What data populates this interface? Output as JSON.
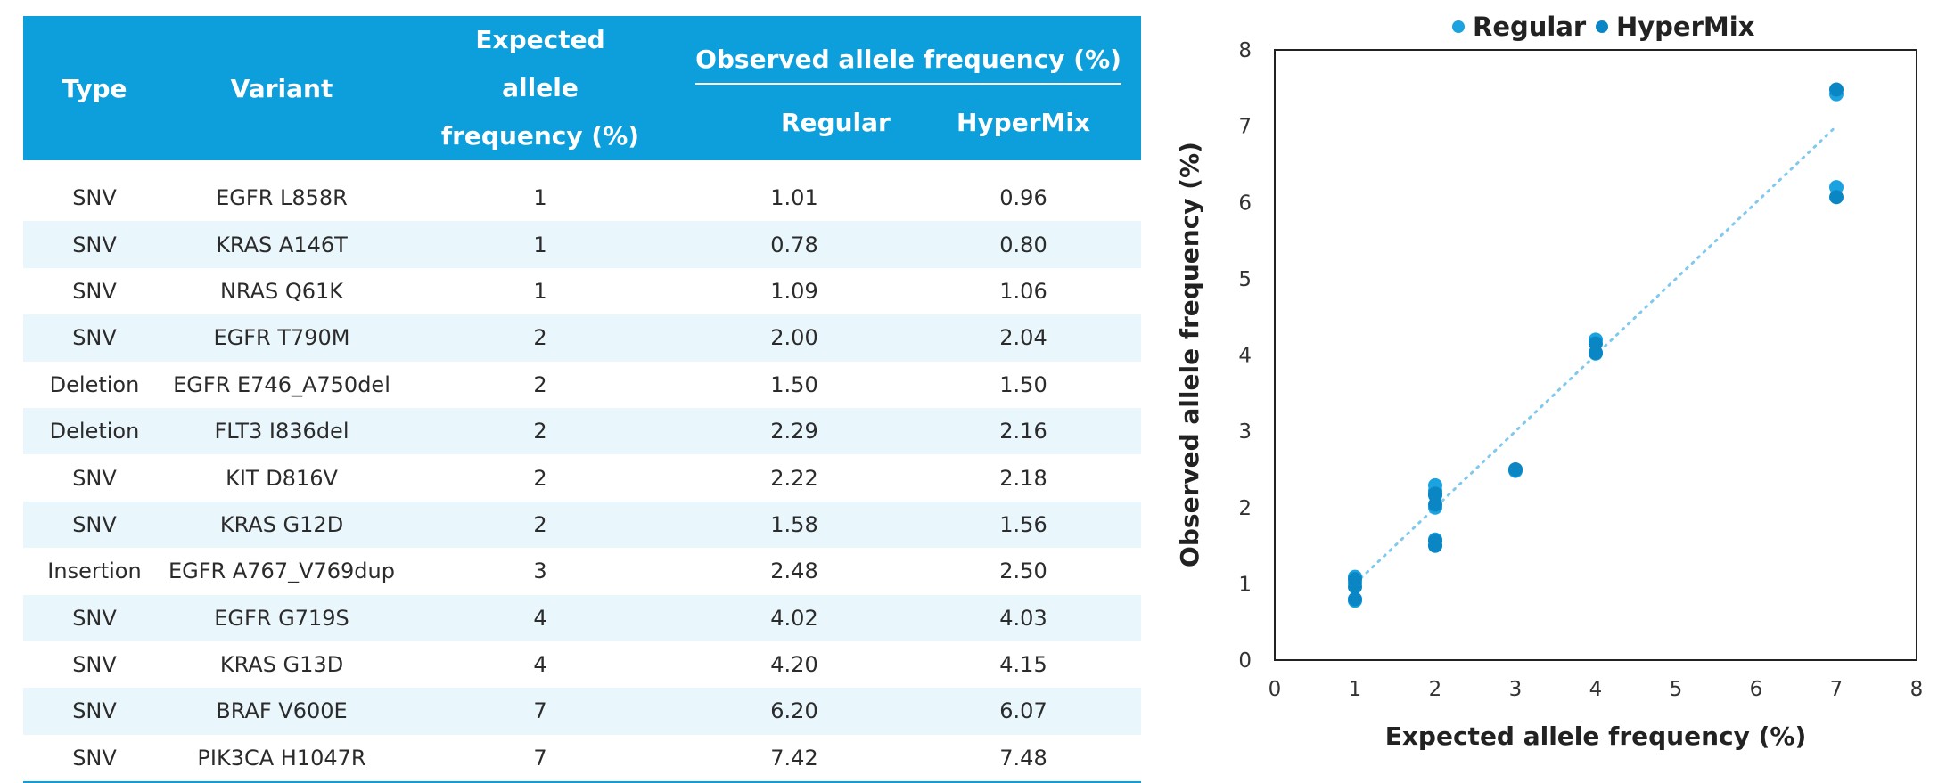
{
  "table": {
    "headers": {
      "type": "Type",
      "variant": "Variant",
      "expected": "Expected allele frequency (%)",
      "observed_group": "Observed allele frequency (%)",
      "regular": "Regular",
      "hypermix": "HyperMix"
    },
    "rows": [
      {
        "type": "SNV",
        "variant": "EGFR L858R",
        "expected": "1",
        "regular": "1.01",
        "hypermix": "0.96"
      },
      {
        "type": "SNV",
        "variant": "KRAS A146T",
        "expected": "1",
        "regular": "0.78",
        "hypermix": "0.80"
      },
      {
        "type": "SNV",
        "variant": "NRAS Q61K",
        "expected": "1",
        "regular": "1.09",
        "hypermix": "1.06"
      },
      {
        "type": "SNV",
        "variant": "EGFR T790M",
        "expected": "2",
        "regular": "2.00",
        "hypermix": "2.04"
      },
      {
        "type": "Deletion",
        "variant": "EGFR E746_A750del",
        "expected": "2",
        "regular": "1.50",
        "hypermix": "1.50"
      },
      {
        "type": "Deletion",
        "variant": "FLT3 I836del",
        "expected": "2",
        "regular": "2.29",
        "hypermix": "2.16"
      },
      {
        "type": "SNV",
        "variant": "KIT D816V",
        "expected": "2",
        "regular": "2.22",
        "hypermix": "2.18"
      },
      {
        "type": "SNV",
        "variant": "KRAS G12D",
        "expected": "2",
        "regular": "1.58",
        "hypermix": "1.56"
      },
      {
        "type": "Insertion",
        "variant": "EGFR A767_V769dup",
        "expected": "3",
        "regular": "2.48",
        "hypermix": "2.50"
      },
      {
        "type": "SNV",
        "variant": "EGFR G719S",
        "expected": "4",
        "regular": "4.02",
        "hypermix": "4.03"
      },
      {
        "type": "SNV",
        "variant": "KRAS G13D",
        "expected": "4",
        "regular": "4.20",
        "hypermix": "4.15"
      },
      {
        "type": "SNV",
        "variant": "BRAF V600E",
        "expected": "7",
        "regular": "6.20",
        "hypermix": "6.07"
      },
      {
        "type": "SNV",
        "variant": "PIK3CA H1047R",
        "expected": "7",
        "regular": "7.42",
        "hypermix": "7.48"
      }
    ]
  },
  "colors": {
    "header_bg": "#0c9fdc",
    "row_stripe": "#e9f6fc",
    "regular": "#1aa3e0",
    "hypermix": "#0b86c4",
    "trendline": "#7fc8ee"
  },
  "chart_data": {
    "type": "scatter",
    "xlabel": "Expected allele frequency (%)",
    "ylabel": "Observed allele frequency (%)",
    "xlim": [
      0,
      8
    ],
    "ylim": [
      0,
      8
    ],
    "xticks": [
      0,
      1,
      2,
      3,
      4,
      5,
      6,
      7,
      8
    ],
    "yticks": [
      0,
      1,
      2,
      3,
      4,
      5,
      6,
      7,
      8
    ],
    "grid": false,
    "legend_position": "top",
    "trendline": "dotted y=x",
    "series": [
      {
        "name": "Regular",
        "x": [
          1,
          1,
          1,
          2,
          2,
          2,
          2,
          2,
          3,
          4,
          4,
          7,
          7
        ],
        "y": [
          1.01,
          0.78,
          1.09,
          2.0,
          1.5,
          2.29,
          2.22,
          1.58,
          2.48,
          4.02,
          4.2,
          6.2,
          7.42
        ]
      },
      {
        "name": "HyperMix",
        "x": [
          1,
          1,
          1,
          2,
          2,
          2,
          2,
          2,
          3,
          4,
          4,
          7,
          7
        ],
        "y": [
          0.96,
          0.8,
          1.06,
          2.04,
          1.5,
          2.16,
          2.18,
          1.56,
          2.5,
          4.03,
          4.15,
          6.07,
          7.48
        ]
      }
    ]
  }
}
